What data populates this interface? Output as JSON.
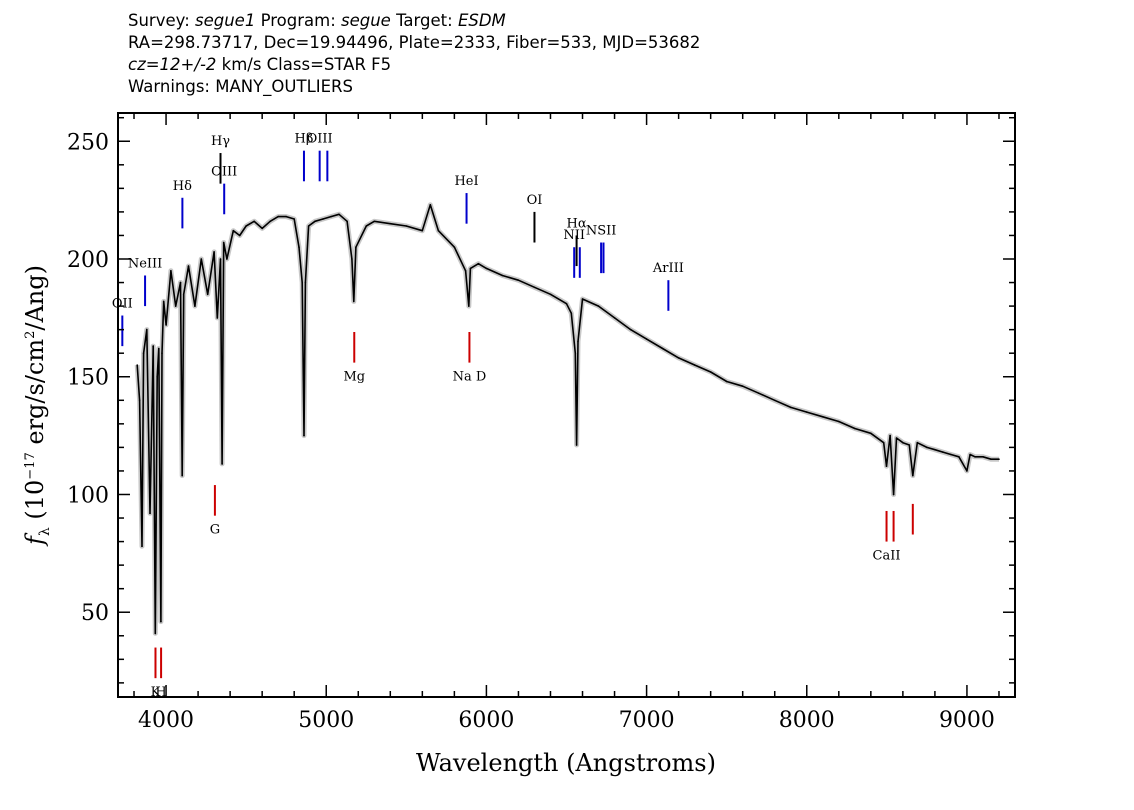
{
  "header": {
    "line1": {
      "survey_label": "Survey: ",
      "survey": "segue1",
      "program_label": " Program: ",
      "program": "segue",
      "target_label": " Target: ",
      "target": "ESDM"
    },
    "line2": "RA=298.73717, Dec=19.94496, Plate=2333, Fiber=533, MJD=53682",
    "line3": {
      "cz": "cz=12+/-2",
      "rest": " km/s Class=STAR F5"
    },
    "line4": "Warnings: MANY_OUTLIERS"
  },
  "chart_data": {
    "type": "line",
    "xlabel": "Wavelength (Angstroms)",
    "ylabel": "f_λ (10^-17 erg/s/cm^2/Ang)",
    "xlim": [
      3700,
      9300
    ],
    "ylim": [
      14,
      262
    ],
    "xticks": [
      4000,
      5000,
      6000,
      7000,
      8000,
      9000
    ],
    "yticks": [
      50,
      100,
      150,
      200,
      250
    ],
    "grid": false,
    "series": [
      {
        "color": "#000000",
        "error_band_color": "#b0b0b0",
        "x": [
          3820,
          3835,
          3850,
          3860,
          3880,
          3900,
          3920,
          3933,
          3945,
          3955,
          3968,
          3975,
          3985,
          4000,
          4030,
          4060,
          4090,
          4101,
          4110,
          4140,
          4180,
          4220,
          4260,
          4300,
          4320,
          4340,
          4350,
          4360,
          4380,
          4420,
          4460,
          4500,
          4550,
          4600,
          4650,
          4700,
          4750,
          4800,
          4830,
          4850,
          4861,
          4870,
          4890,
          4930,
          4980,
          5030,
          5080,
          5130,
          5160,
          5172,
          5185,
          5250,
          5300,
          5400,
          5500,
          5600,
          5650,
          5700,
          5800,
          5870,
          5890,
          5900,
          5950,
          6000,
          6100,
          6200,
          6300,
          6400,
          6500,
          6530,
          6555,
          6563,
          6572,
          6600,
          6700,
          6800,
          6900,
          7000,
          7100,
          7200,
          7300,
          7400,
          7500,
          7600,
          7700,
          7800,
          7900,
          8000,
          8100,
          8200,
          8300,
          8400,
          8480,
          8498,
          8520,
          8542,
          8560,
          8600,
          8640,
          8662,
          8690,
          8750,
          8800,
          8850,
          8900,
          8950,
          9000,
          9020,
          9050,
          9100,
          9150,
          9200
        ],
        "y": [
          155,
          140,
          78,
          160,
          170,
          92,
          163,
          41,
          150,
          162,
          46,
          160,
          182,
          172,
          195,
          180,
          190,
          108,
          185,
          197,
          180,
          200,
          185,
          203,
          175,
          200,
          113,
          207,
          200,
          212,
          210,
          214,
          216,
          213,
          216,
          218,
          218,
          217,
          205,
          190,
          125,
          190,
          214,
          216,
          217,
          218,
          219,
          216,
          200,
          182,
          205,
          214,
          216,
          215,
          214,
          212,
          223,
          212,
          205,
          195,
          180,
          196,
          198,
          196,
          193,
          191,
          188,
          185,
          181,
          177,
          160,
          121,
          165,
          183,
          180,
          175,
          170,
          166,
          162,
          158,
          155,
          152,
          148,
          146,
          143,
          140,
          137,
          135,
          133,
          131,
          128,
          126,
          122,
          112,
          125,
          100,
          124,
          122,
          121,
          108,
          122,
          120,
          119,
          118,
          117,
          116,
          110,
          117,
          116,
          116,
          115,
          115
        ]
      }
    ],
    "emission_lines": [
      {
        "label": "OII",
        "x": 3727,
        "y1": 163,
        "y2": 176,
        "color": "#0000cc"
      },
      {
        "label": "NeIII",
        "x": 3869,
        "y1": 180,
        "y2": 193,
        "color": "#0000cc"
      },
      {
        "label": "Hδ",
        "x": 4102,
        "y1": 213,
        "y2": 226,
        "color": "#0000cc"
      },
      {
        "label": "Hγ",
        "x": 4340,
        "y1": 232,
        "y2": 245,
        "color": "#000000"
      },
      {
        "label": "OIII",
        "x": 4363,
        "y1": 219,
        "y2": 232,
        "color": "#0000cc"
      },
      {
        "label": "Hβ",
        "x": 4861,
        "y1": 233,
        "y2": 246,
        "color": "#0000cc"
      },
      {
        "label": "OIII",
        "x": 4959,
        "y1": 233,
        "y2": 246,
        "color": "#0000cc"
      },
      {
        "label": "",
        "x": 5007,
        "y1": 233,
        "y2": 246,
        "color": "#0000cc"
      },
      {
        "label": "HeI",
        "x": 5876,
        "y1": 215,
        "y2": 228,
        "color": "#0000cc"
      },
      {
        "label": "OI",
        "x": 6300,
        "y1": 207,
        "y2": 220,
        "color": "#000000"
      },
      {
        "label": "NII",
        "x": 6548,
        "y1": 192,
        "y2": 205,
        "color": "#0000cc"
      },
      {
        "label": "Hα",
        "x": 6563,
        "y1": 197,
        "y2": 210,
        "color": "#000000"
      },
      {
        "label": "",
        "x": 6583,
        "y1": 192,
        "y2": 205,
        "color": "#0000cc"
      },
      {
        "label": "NSII",
        "x": 6716,
        "y1": 194,
        "y2": 207,
        "color": "#0000cc"
      },
      {
        "label": "",
        "x": 6731,
        "y1": 194,
        "y2": 207,
        "color": "#0000cc"
      },
      {
        "label": "ArIII",
        "x": 7136,
        "y1": 178,
        "y2": 191,
        "color": "#0000cc"
      }
    ],
    "absorption_lines": [
      {
        "label": "K",
        "x": 3934,
        "y1": 22,
        "y2": 35,
        "color": "#cc0000"
      },
      {
        "label": "H",
        "x": 3969,
        "y1": 22,
        "y2": 35,
        "color": "#cc0000"
      },
      {
        "label": "G",
        "x": 4305,
        "y1": 91,
        "y2": 104,
        "color": "#cc0000"
      },
      {
        "label": "Mg",
        "x": 5175,
        "y1": 156,
        "y2": 169,
        "color": "#cc0000"
      },
      {
        "label": "Na  D",
        "x": 5894,
        "y1": 156,
        "y2": 169,
        "color": "#cc0000"
      },
      {
        "label": "CaII",
        "x": 8498,
        "y1": 80,
        "y2": 93,
        "color": "#cc0000"
      },
      {
        "label": "",
        "x": 8542,
        "y1": 80,
        "y2": 93,
        "color": "#cc0000"
      },
      {
        "label": "",
        "x": 8662,
        "y1": 83,
        "y2": 96,
        "color": "#cc0000"
      }
    ]
  }
}
